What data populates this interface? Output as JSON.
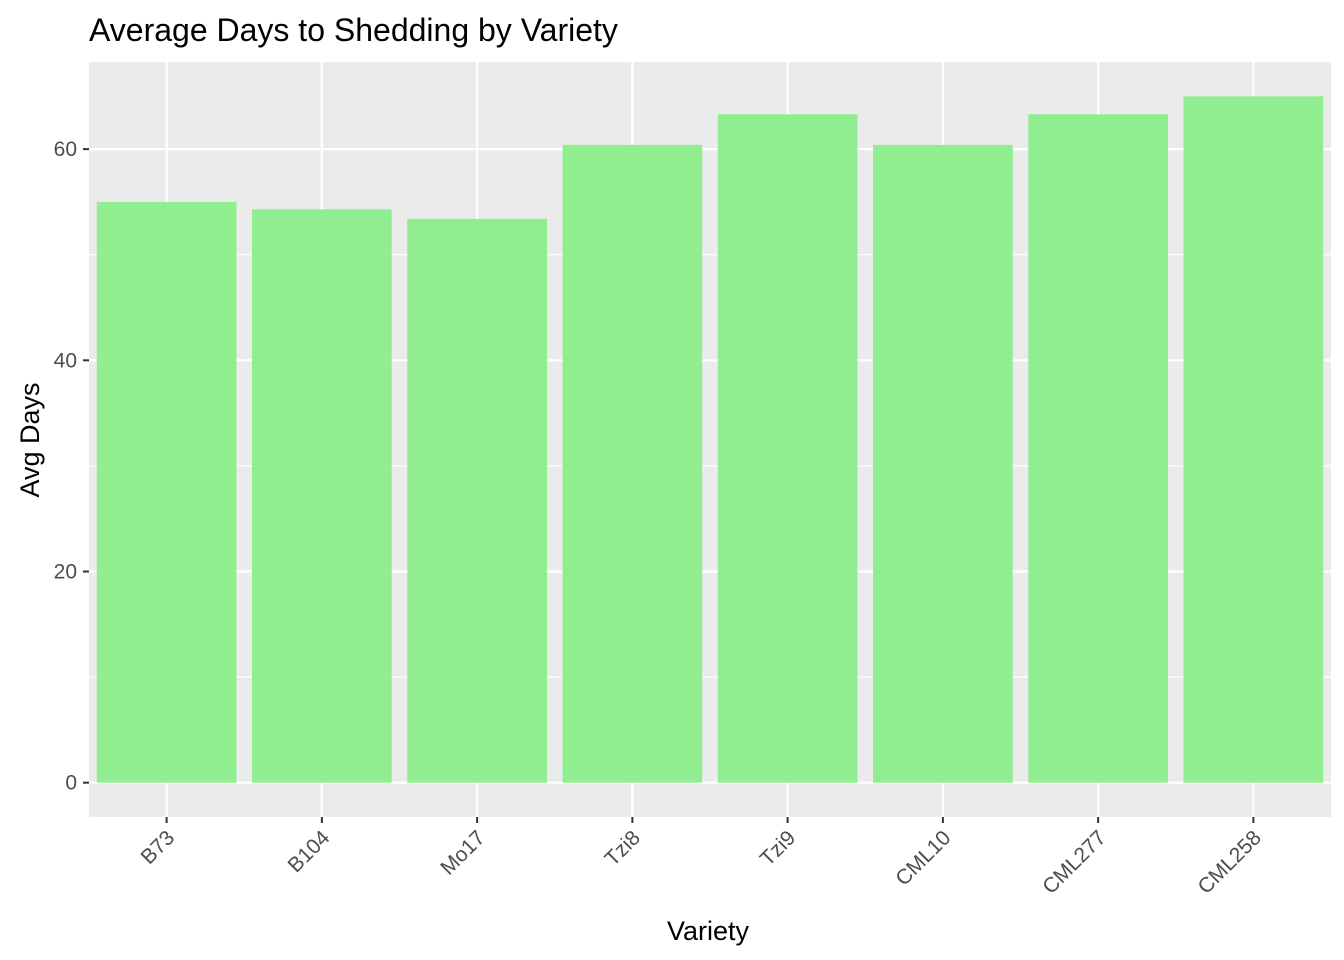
{
  "chart_data": {
    "type": "bar",
    "title": "Average Days to Shedding by Variety",
    "xlabel": "Variety",
    "ylabel": "Avg Days",
    "categories": [
      "B73",
      "B104",
      "Mo17",
      "Tzi8",
      "Tzi9",
      "CML10",
      "CML277",
      "CML258"
    ],
    "values": [
      55.0,
      54.3,
      53.4,
      60.4,
      63.3,
      60.4,
      63.3,
      65.0
    ],
    "ylim": [
      -3.25,
      68.25
    ],
    "yticks": [
      0,
      20,
      40,
      60
    ],
    "grid": true,
    "bar_color": "#90EE90",
    "panel_color": "#EBEBEB",
    "grid_color": "#FFFFFF",
    "x_tick_rotation": 45
  }
}
